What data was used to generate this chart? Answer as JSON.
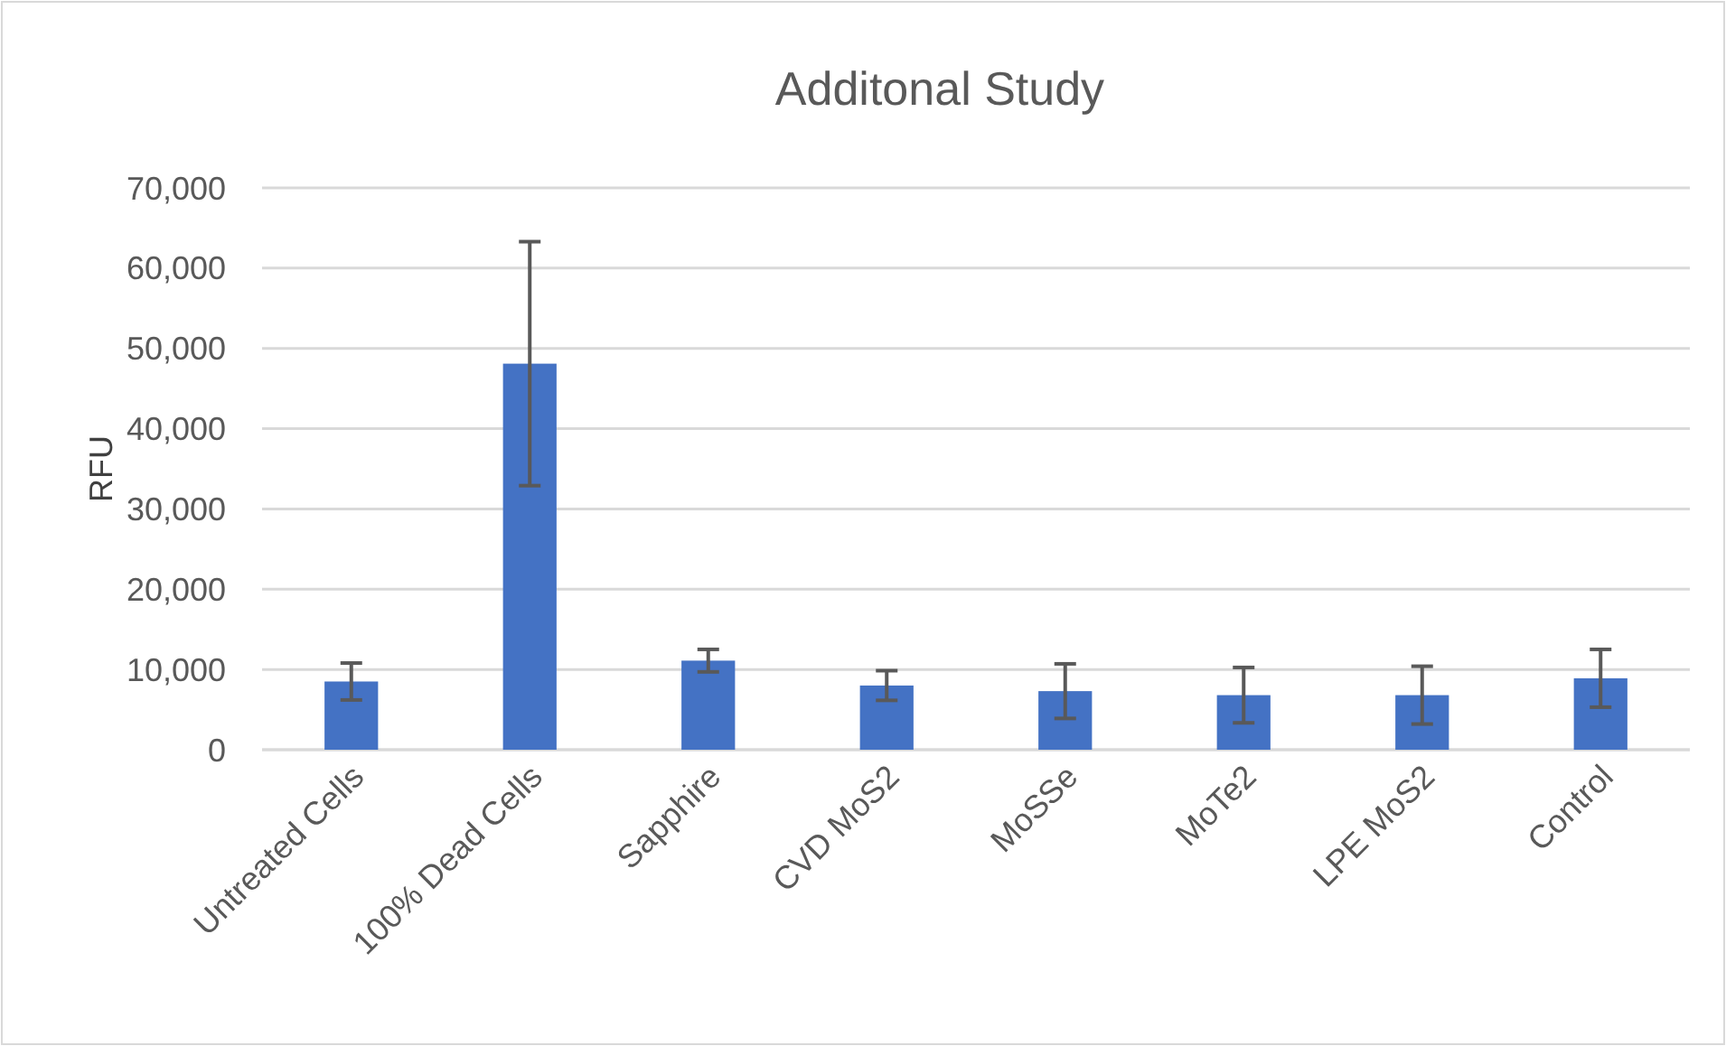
{
  "chart_data": {
    "type": "bar",
    "title": "Additonal Study",
    "ylabel": "RFU",
    "categories": [
      "Untreated Cells",
      "100% Dead Cells",
      "Sapphire",
      "CVD MoS2",
      "MoSSe",
      "MoTe2",
      "LPE MoS2",
      "Control"
    ],
    "values": [
      8500,
      48100,
      11100,
      8000,
      7300,
      6800,
      6800,
      8900
    ],
    "errors": [
      2300,
      15200,
      1400,
      1850,
      3400,
      3450,
      3600,
      3600
    ],
    "color": "#4472c4",
    "ylim": [
      0,
      70000
    ],
    "yticks": [
      {
        "value": 0,
        "label": "0"
      },
      {
        "value": 10000,
        "label": "10,000"
      },
      {
        "value": 20000,
        "label": "20,000"
      },
      {
        "value": 30000,
        "label": "30,000"
      },
      {
        "value": 40000,
        "label": "40,000"
      },
      {
        "value": 50000,
        "label": "50,000"
      },
      {
        "value": 60000,
        "label": "60,000"
      },
      {
        "value": 70000,
        "label": "70,000"
      }
    ],
    "grid": "y"
  }
}
